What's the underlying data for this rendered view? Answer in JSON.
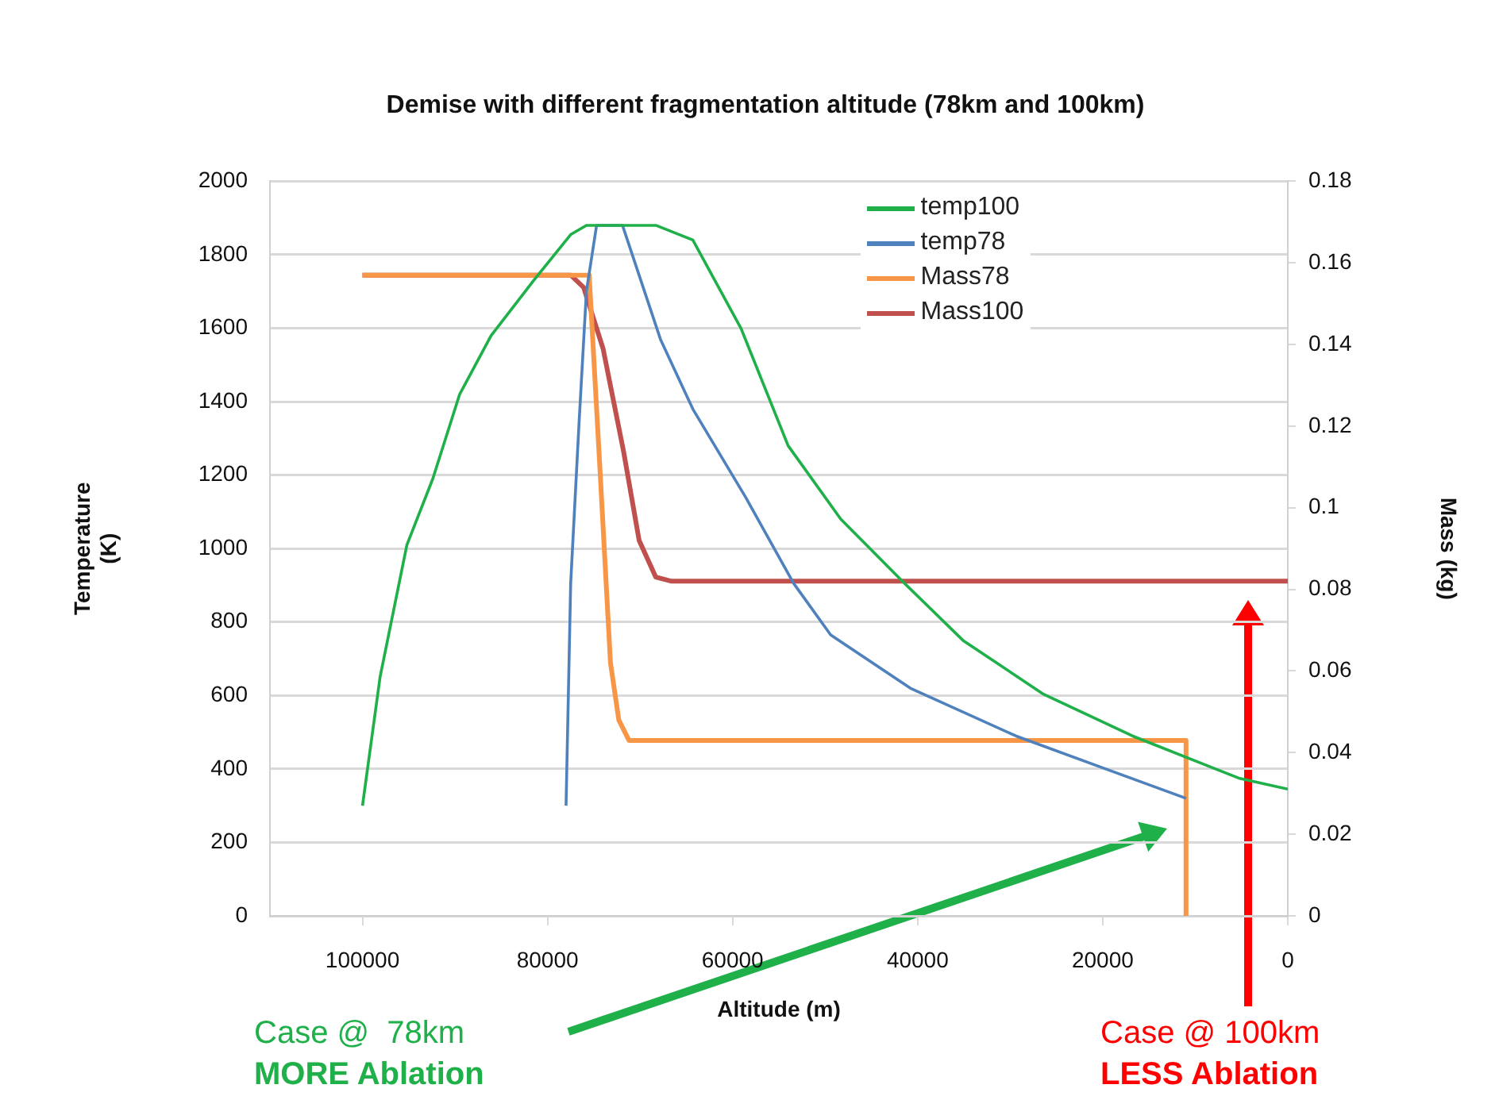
{
  "chart_data": {
    "type": "line",
    "title": "Demise with different fragmentation altitude (78km and 100km)",
    "xlabel": "Altitude (m)",
    "ylabel": "Temperature\n(K)",
    "y2label": "Mass (kg)",
    "xlim": [
      110000,
      0
    ],
    "xticks": [
      100000,
      80000,
      60000,
      40000,
      20000,
      0
    ],
    "ylim": [
      0,
      2000
    ],
    "yticks": [
      0,
      200,
      400,
      600,
      800,
      1000,
      1200,
      1400,
      1600,
      1800,
      2000
    ],
    "y2lim": [
      0,
      0.18
    ],
    "y2ticks": [
      0,
      0.02,
      0.04,
      0.06,
      0.08,
      0.1,
      0.12,
      0.14,
      0.16,
      0.18
    ],
    "grid": "y",
    "legend": "top right",
    "marker": "none",
    "series": [
      {
        "name": "temp100",
        "color": "#1fb04a",
        "x": [
          100000,
          98100,
          95200,
          92400,
          89500,
          86100,
          81500,
          77500,
          75800,
          68300,
          64300,
          59100,
          54000,
          48300,
          41400,
          35100,
          26500,
          16800,
          5300,
          0
        ],
        "values": [
          300,
          650,
          1010,
          1190,
          1420,
          1580,
          1730,
          1855,
          1880,
          1880,
          1840,
          1600,
          1280,
          1080,
          905,
          750,
          605,
          490,
          375,
          345
        ]
      },
      {
        "name": "temp78",
        "color": "#4f81bd",
        "x": [
          78000,
          77500,
          76600,
          75800,
          74700,
          71900,
          67800,
          64300,
          58600,
          53400,
          49400,
          40800,
          29400,
          20200,
          11000
        ],
        "values": [
          300,
          905,
          1340,
          1700,
          1880,
          1880,
          1570,
          1380,
          1140,
          905,
          765,
          620,
          490,
          405,
          320
        ]
      },
      {
        "name": "Mass78",
        "color": "#f79646",
        "axis": "y2",
        "x": [
          100000,
          75500,
          74300,
          73200,
          72300,
          71200,
          11000,
          11000
        ],
        "values": [
          0.157,
          0.157,
          0.108,
          0.062,
          0.048,
          0.043,
          0.043,
          0
        ]
      },
      {
        "name": "Mass100",
        "color": "#c0504d",
        "axis": "y2",
        "x": [
          100000,
          77500,
          76100,
          74000,
          71800,
          70100,
          68300,
          66600,
          0
        ],
        "values": [
          0.157,
          0.157,
          0.154,
          0.139,
          0.114,
          0.092,
          0.083,
          0.082,
          0.082
        ]
      }
    ],
    "annotations": [
      "Case @  78km\nMORE Ablation",
      "Case @ 100km\nLESS Ablation"
    ]
  }
}
